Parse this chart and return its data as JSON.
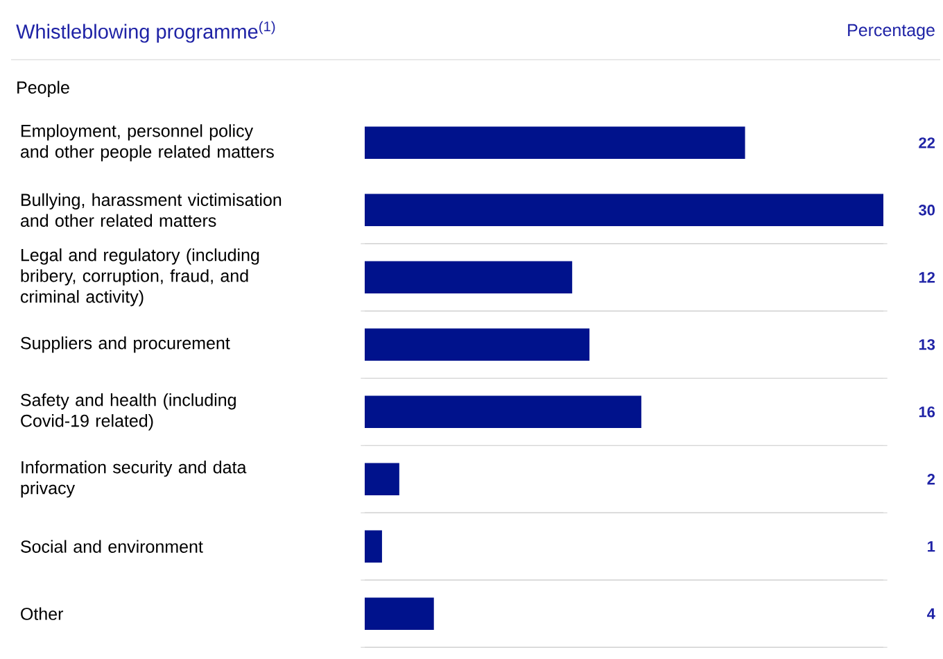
{
  "chart_data": {
    "type": "bar",
    "orientation": "horizontal",
    "title": "Whistleblowing programme$^{(1)}$",
    "xlabel": "Percentage",
    "annotations": [
      "People"
    ],
    "categories": [
      "Employment, personnel policy and other people related matters",
      "Bullying, harassment victimisation and other related matters",
      "Legal and regulatory (including bribery, corruption, fraud, and criminal activity)",
      "Suppliers and procurement",
      "Safety and health (including Covid-19 related)",
      "Information security and data privacy",
      "Social and environment",
      "Other"
    ],
    "values": [
      22,
      30,
      12,
      13,
      16,
      2,
      1,
      4
    ],
    "color": "#00128c",
    "xlim": [
      0,
      30
    ],
    "data_labels": true,
    "tick_labels": "y",
    "grid": "y"
  }
}
